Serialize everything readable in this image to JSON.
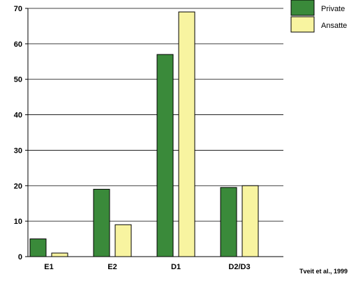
{
  "chart_data": {
    "type": "bar",
    "categories": [
      "E1",
      "E2",
      "D1",
      "D2/D3"
    ],
    "series": [
      {
        "name": "Private",
        "color": "#3a8a3a",
        "values": [
          5,
          19,
          57,
          19.5
        ]
      },
      {
        "name": "Ansatte",
        "color": "#f8f4a0",
        "values": [
          1,
          9,
          69,
          20
        ]
      }
    ],
    "ylim": [
      0,
      70
    ],
    "yticks": [
      0,
      10,
      20,
      30,
      40,
      50,
      60,
      70
    ],
    "grid": true,
    "legend_position": "top-right",
    "source": "Tveit et al., 1999"
  }
}
